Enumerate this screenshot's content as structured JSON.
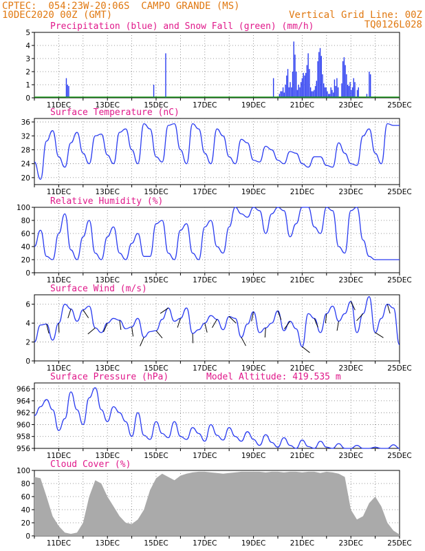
{
  "header": {
    "line1_left": "CPTEC:  054:23W-20:06S  CAMPO GRANDE (MS)",
    "line2_left": "10DEC2020 00Z (GMT)",
    "line2_right": "Vertical Grid Line: 00Z",
    "line3_right": "TQ0126L028"
  },
  "colors": {
    "header": "#e07810",
    "title": "#e0188a",
    "line": "#2a3cf0",
    "snow": "#1a9a1a",
    "cloud": "#aaaaaa",
    "arrow": "#000000"
  },
  "chart_data": [
    {
      "type": "bar",
      "title": "Precipitation (blue) and Snow Fall (green) (mm/h)",
      "x_axis": {
        "start": "10DEC2020 00Z",
        "end": "25DEC2020 00Z",
        "step_hours": 3,
        "tick_labels": [
          "11DEC",
          "13DEC",
          "15DEC",
          "17DEC",
          "19DEC",
          "21DEC",
          "23DEC",
          "25DEC"
        ]
      },
      "ylim": [
        0,
        5
      ],
      "yticks": [
        0,
        1,
        2,
        3,
        4,
        5
      ],
      "series": [
        {
          "name": "Precipitation (blue)",
          "values": [
            0,
            0,
            0,
            0,
            0,
            0,
            0,
            0,
            0,
            0,
            0,
            0,
            0,
            0,
            0,
            0,
            0,
            0,
            0,
            0,
            0,
            0,
            0,
            0,
            0,
            0,
            1.5,
            1,
            0.9,
            0,
            0,
            0,
            0,
            0,
            0,
            0,
            0,
            0,
            0,
            0,
            0,
            0,
            0,
            0,
            0,
            0,
            0,
            0,
            0,
            0,
            0,
            0,
            0,
            0,
            0,
            0,
            0,
            0,
            0,
            0,
            0,
            0,
            0,
            0,
            0,
            0,
            0,
            0,
            0,
            0,
            0,
            0,
            0,
            0,
            0,
            0,
            0,
            0,
            0,
            0,
            0,
            0,
            0,
            0,
            0,
            0,
            0,
            0,
            0,
            0,
            0,
            0,
            0,
            0,
            0,
            0,
            0,
            0,
            0,
            1,
            0,
            0,
            0,
            0,
            0,
            0,
            0,
            0,
            0,
            3.4,
            0,
            0,
            0,
            0,
            0,
            0,
            0,
            0,
            0,
            0,
            0,
            0,
            0,
            0,
            0,
            0,
            0,
            0,
            0,
            0,
            0,
            0,
            0,
            0,
            0,
            0,
            0,
            0,
            0,
            0,
            0,
            0,
            0,
            0,
            0,
            0,
            0,
            0,
            0,
            0,
            0,
            0,
            0,
            0,
            0,
            0,
            0,
            0,
            0,
            0,
            0,
            0,
            0,
            0,
            0,
            0,
            0,
            0,
            0,
            0,
            0,
            0,
            0,
            0,
            0,
            0,
            0,
            0,
            0,
            0,
            0,
            0,
            0,
            0,
            0,
            0,
            0,
            0,
            0,
            0,
            0,
            0,
            0,
            0,
            0,
            0,
            0,
            0,
            0,
            1.5,
            0,
            0,
            0,
            0,
            0.3,
            0.5,
            0.5,
            0.8,
            0.4,
            1,
            1.7,
            2.2,
            0.8,
            1.2,
            0.8,
            2,
            4.3,
            3.3,
            2,
            0.6,
            1,
            0.8,
            1.2,
            1.5,
            1.9,
            1.7,
            1.9,
            2.5,
            3.4,
            2.2,
            0.8,
            0.5,
            0.5,
            0.6,
            0.9,
            1.3,
            2.8,
            3.5,
            3.8,
            3.2,
            1.8,
            1.1,
            0.8,
            0.8,
            0.5,
            0.3,
            0.3,
            0.8,
            0.6,
            0.4,
            1.4,
            0.9,
            1.5,
            0.8,
            0,
            0,
            1.1,
            2.8,
            3.1,
            2.5,
            1.8,
            1,
            0.9,
            1.2,
            0.6,
            0.8,
            1.5,
            1.2,
            0,
            0.6,
            0.8,
            0,
            0,
            0,
            0,
            0,
            0,
            0.3,
            0,
            2,
            1.8,
            0,
            0,
            0,
            0,
            0,
            0,
            0,
            0,
            0,
            0,
            0,
            0,
            0,
            0,
            0,
            0,
            0,
            0,
            0,
            0,
            0,
            0,
            0,
            0
          ]
        },
        {
          "name": "Snow Fall (green)",
          "values_const": 0
        }
      ]
    },
    {
      "type": "line",
      "title": "Surface Temperature (nC)",
      "ylim": [
        18,
        37
      ],
      "yticks": [
        20,
        24,
        28,
        32,
        36
      ],
      "x": [
        "10DEC 00Z",
        "10DEC 06Z",
        "10DEC 12Z",
        "10DEC 18Z",
        "11DEC 00Z",
        "11DEC 06Z",
        "11DEC 12Z",
        "11DEC 18Z",
        "12DEC 00Z",
        "12DEC 06Z",
        "12DEC 12Z",
        "12DEC 18Z",
        "13DEC 00Z",
        "13DEC 06Z",
        "13DEC 12Z",
        "13DEC 18Z",
        "14DEC 00Z",
        "14DEC 06Z",
        "14DEC 12Z",
        "14DEC 18Z",
        "15DEC 00Z",
        "15DEC 06Z",
        "15DEC 12Z",
        "15DEC 18Z",
        "16DEC 00Z",
        "16DEC 06Z",
        "16DEC 12Z",
        "16DEC 18Z",
        "17DEC 00Z",
        "17DEC 06Z",
        "17DEC 12Z",
        "17DEC 18Z",
        "18DEC 00Z",
        "18DEC 06Z",
        "18DEC 12Z",
        "18DEC 18Z",
        "19DEC 00Z",
        "19DEC 06Z",
        "19DEC 12Z",
        "19DEC 18Z",
        "20DEC 00Z",
        "20DEC 06Z",
        "20DEC 12Z",
        "20DEC 18Z",
        "21DEC 00Z",
        "21DEC 06Z",
        "21DEC 12Z",
        "21DEC 18Z",
        "22DEC 00Z",
        "22DEC 06Z",
        "22DEC 12Z",
        "22DEC 18Z",
        "23DEC 00Z",
        "23DEC 06Z",
        "23DEC 12Z",
        "23DEC 18Z",
        "24DEC 00Z",
        "24DEC 06Z",
        "24DEC 12Z",
        "24DEC 18Z",
        "25DEC 00Z"
      ],
      "values": [
        24.5,
        19.5,
        30.5,
        33.5,
        26,
        23,
        30,
        33,
        27,
        24,
        32,
        32.5,
        26.5,
        24,
        33,
        34,
        28,
        24,
        35.5,
        34,
        26,
        24.5,
        35,
        35.5,
        28,
        24,
        35.5,
        34,
        27,
        24,
        34,
        32,
        26,
        24,
        31,
        30,
        25,
        24.5,
        29,
        28,
        25,
        24,
        27.5,
        27,
        24,
        23,
        26,
        26,
        23.5,
        23,
        30,
        27,
        24,
        23.5,
        32,
        34,
        27,
        24,
        35.5,
        35,
        35
      ]
    },
    {
      "type": "line",
      "title": "Relative Humidity (%)",
      "ylim": [
        0,
        100
      ],
      "yticks": [
        0,
        20,
        40,
        60,
        80,
        100
      ],
      "values": [
        40,
        65,
        25,
        20,
        60,
        90,
        35,
        20,
        55,
        80,
        30,
        20,
        55,
        70,
        30,
        20,
        45,
        60,
        25,
        25,
        75,
        80,
        30,
        20,
        65,
        75,
        30,
        20,
        70,
        80,
        40,
        30,
        70,
        100,
        90,
        85,
        100,
        95,
        60,
        90,
        100,
        95,
        55,
        75,
        100,
        100,
        70,
        60,
        100,
        95,
        40,
        30,
        95,
        100,
        50,
        25,
        20,
        20,
        20,
        20,
        20
      ]
    },
    {
      "type": "line",
      "title": "Surface Wind (m/s)",
      "ylim": [
        0,
        7
      ],
      "yticks": [
        0,
        2,
        4,
        6
      ],
      "values": [
        2,
        3.8,
        3.9,
        2.2,
        4,
        6,
        5.5,
        4.2,
        5.4,
        5.8,
        3.5,
        3,
        4,
        4.5,
        4.3,
        3.4,
        3.6,
        4.5,
        2.5,
        3.1,
        3.2,
        4.4,
        5.6,
        4.2,
        4.5,
        5.6,
        2.9,
        3.3,
        4,
        4.8,
        4.4,
        3.3,
        4.7,
        4.5,
        2.5,
        3.9,
        5.2,
        3,
        3.5,
        4,
        5.3,
        3.2,
        4.2,
        3.4,
        1.5,
        5,
        4.5,
        3,
        5,
        5.8,
        4.2,
        5,
        6.3,
        3,
        5,
        6.8,
        3,
        4.5,
        6,
        5.6,
        1.7
      ],
      "vector_note": "wind direction arrows drawn along the line"
    },
    {
      "type": "line",
      "title": "Surface Pressure (hPa)",
      "annotation": "Model Altitude: 419.535 m",
      "ylim": [
        956,
        967
      ],
      "yticks": [
        956,
        958,
        960,
        962,
        964,
        966
      ],
      "values": [
        961.5,
        963,
        964.2,
        962.5,
        959,
        961,
        965.5,
        962.5,
        960,
        964.5,
        966.2,
        962.5,
        960.5,
        963,
        962,
        960.5,
        958,
        962,
        958.2,
        957.5,
        960.5,
        958.5,
        957.8,
        960.5,
        958,
        957.5,
        959.5,
        958.5,
        957.2,
        960,
        958.2,
        957.4,
        959.5,
        958,
        957.2,
        958.8,
        957.5,
        956.5,
        958.3,
        957,
        956.2,
        957.8,
        956.5,
        955.8,
        957.4,
        956.3,
        955.8,
        957.2,
        956.2,
        955.8,
        956.8,
        956,
        955.5,
        956.5,
        955.8,
        955.5,
        956.2,
        955.6,
        955.5,
        956.6,
        955.3
      ]
    },
    {
      "type": "area",
      "title": "Cloud Cover (%)",
      "ylim": [
        0,
        100
      ],
      "yticks": [
        0,
        20,
        40,
        60,
        80,
        100
      ],
      "values": [
        90,
        88,
        60,
        30,
        15,
        5,
        3,
        5,
        20,
        60,
        85,
        80,
        60,
        45,
        30,
        20,
        18,
        25,
        40,
        70,
        88,
        95,
        90,
        85,
        92,
        95,
        97,
        98,
        98,
        97,
        96,
        95,
        96,
        97,
        98,
        98,
        98,
        98,
        97,
        98,
        98,
        97,
        98,
        98,
        97,
        98,
        98,
        96,
        98,
        97,
        95,
        90,
        40,
        25,
        30,
        50,
        60,
        45,
        20,
        8,
        2
      ]
    }
  ]
}
